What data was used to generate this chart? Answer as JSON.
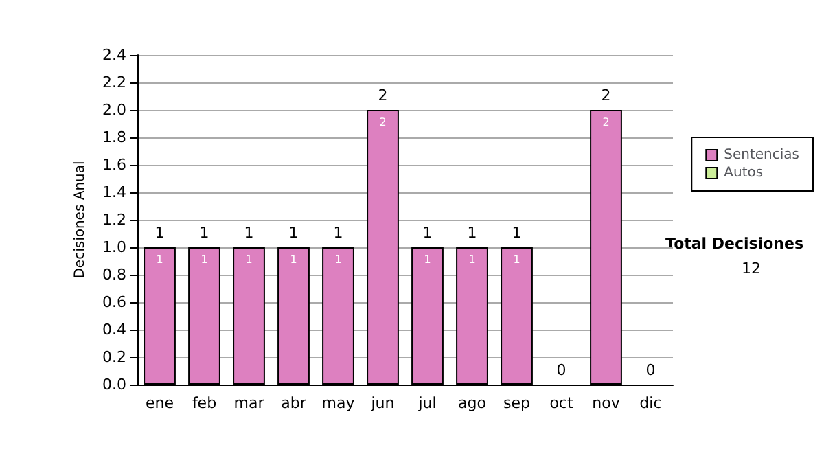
{
  "chart_data": {
    "type": "bar",
    "ylabel": "Decisiones Anual",
    "categories": [
      "ene",
      "feb",
      "mar",
      "abr",
      "may",
      "jun",
      "jul",
      "ago",
      "sep",
      "oct",
      "nov",
      "dic"
    ],
    "series": [
      {
        "name": "Sentencias",
        "color": "#dd80c0",
        "values": [
          1,
          1,
          1,
          1,
          1,
          2,
          1,
          1,
          1,
          0,
          2,
          0
        ],
        "value_labels": [
          "1",
          "1",
          "1",
          "1",
          "1",
          "2",
          "1",
          "1",
          "1",
          null,
          "2",
          null
        ]
      },
      {
        "name": "Autos",
        "color": "#ccee99",
        "values": [
          0,
          0,
          0,
          0,
          0,
          0,
          0,
          0,
          0,
          0,
          0,
          0
        ]
      }
    ],
    "stacked": true,
    "totals": [
      "1",
      "1",
      "1",
      "1",
      "1",
      "2",
      "1",
      "1",
      "1",
      "0",
      "2",
      "0"
    ],
    "ylim": [
      0,
      2.4
    ],
    "yticks": [
      {
        "value": 0,
        "label": "0.0"
      },
      0.2,
      0.4,
      0.6,
      0.8,
      {
        "value": 1,
        "label": "1.0"
      },
      1.2,
      1.4,
      1.6,
      1.8,
      {
        "value": 2,
        "label": "2.0"
      },
      2.2,
      2.4
    ],
    "grid": "y",
    "legend": "right",
    "annotations": [
      "Total Decisiones",
      "12"
    ]
  }
}
